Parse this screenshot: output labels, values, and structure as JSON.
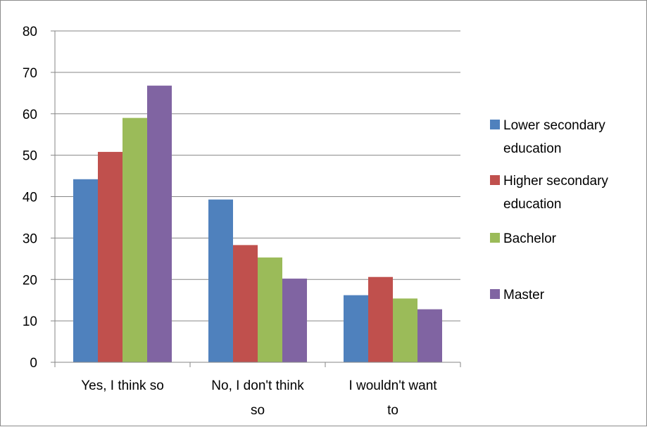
{
  "chart_data": {
    "type": "bar",
    "title": "",
    "xlabel": "",
    "ylabel": "",
    "ylim": [
      0,
      80
    ],
    "ytick_step": 10,
    "yticks": [
      "0",
      "10",
      "20",
      "30",
      "40",
      "50",
      "60",
      "70",
      "80"
    ],
    "grid": true,
    "legend": "right",
    "categories": [
      [
        "Yes, I think so"
      ],
      [
        "No, I don't think",
        "so"
      ],
      [
        "I wouldn't want",
        "to"
      ]
    ],
    "series": [
      {
        "name": [
          "Lower secondary",
          "education"
        ],
        "color": "#4f81bd",
        "values": [
          44.2,
          39.3,
          16.2
        ]
      },
      {
        "name": [
          "Higher secondary",
          "education"
        ],
        "color": "#c0504d",
        "values": [
          50.8,
          28.3,
          20.6
        ]
      },
      {
        "name": [
          "Bachelor"
        ],
        "color": "#9bbb59",
        "values": [
          59.0,
          25.3,
          15.4
        ]
      },
      {
        "name": [
          "Master"
        ],
        "color": "#8064a2",
        "values": [
          66.8,
          20.2,
          12.8
        ]
      }
    ]
  }
}
